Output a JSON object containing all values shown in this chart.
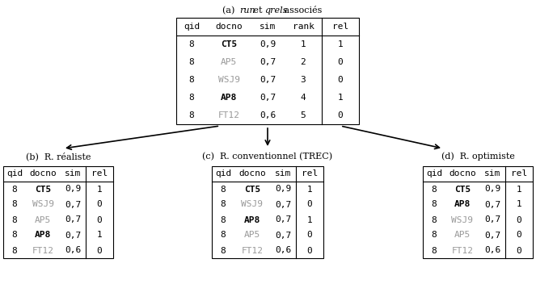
{
  "title_a_parts": [
    "(a)  ",
    "run",
    " et ",
    "qrels",
    " associés"
  ],
  "title_a_italic": [
    false,
    true,
    false,
    true,
    false
  ],
  "title_b": "(b)  R. réaliste",
  "title_c": "(c)  R. conventionnel (TREC)",
  "title_d": "(d)  R. optimiste",
  "table_a_headers": [
    "qid",
    "docno",
    "sim",
    "rank",
    "rel"
  ],
  "table_a_rows": [
    {
      "qid": "8",
      "docno": "CT5",
      "sim": "0,9",
      "rank": "1",
      "rel": "1",
      "docno_bold": true,
      "docno_gray": false
    },
    {
      "qid": "8",
      "docno": "AP5",
      "sim": "0,7",
      "rank": "2",
      "rel": "0",
      "docno_bold": false,
      "docno_gray": true
    },
    {
      "qid": "8",
      "docno": "WSJ9",
      "sim": "0,7",
      "rank": "3",
      "rel": "0",
      "docno_bold": false,
      "docno_gray": true
    },
    {
      "qid": "8",
      "docno": "AP8",
      "sim": "0,7",
      "rank": "4",
      "rel": "1",
      "docno_bold": true,
      "docno_gray": false
    },
    {
      "qid": "8",
      "docno": "FT12",
      "sim": "0,6",
      "rank": "5",
      "rel": "0",
      "docno_bold": false,
      "docno_gray": true
    }
  ],
  "table_b_headers": [
    "qid",
    "docno",
    "sim",
    "rel"
  ],
  "table_b_rows": [
    {
      "qid": "8",
      "docno": "CT5",
      "sim": "0,9",
      "rel": "1",
      "docno_bold": true,
      "docno_gray": false
    },
    {
      "qid": "8",
      "docno": "WSJ9",
      "sim": "0,7",
      "rel": "0",
      "docno_bold": false,
      "docno_gray": true
    },
    {
      "qid": "8",
      "docno": "AP5",
      "sim": "0,7",
      "rel": "0",
      "docno_bold": false,
      "docno_gray": true
    },
    {
      "qid": "8",
      "docno": "AP8",
      "sim": "0,7",
      "rel": "1",
      "docno_bold": true,
      "docno_gray": false
    },
    {
      "qid": "8",
      "docno": "FT12",
      "sim": "0,6",
      "rel": "0",
      "docno_bold": false,
      "docno_gray": true
    }
  ],
  "table_c_headers": [
    "qid",
    "docno",
    "sim",
    "rel"
  ],
  "table_c_rows": [
    {
      "qid": "8",
      "docno": "CT5",
      "sim": "0,9",
      "rel": "1",
      "docno_bold": true,
      "docno_gray": false
    },
    {
      "qid": "8",
      "docno": "WSJ9",
      "sim": "0,7",
      "rel": "0",
      "docno_bold": false,
      "docno_gray": true
    },
    {
      "qid": "8",
      "docno": "AP8",
      "sim": "0,7",
      "rel": "1",
      "docno_bold": true,
      "docno_gray": false
    },
    {
      "qid": "8",
      "docno": "AP5",
      "sim": "0,7",
      "rel": "0",
      "docno_bold": false,
      "docno_gray": true
    },
    {
      "qid": "8",
      "docno": "FT12",
      "sim": "0,6",
      "rel": "0",
      "docno_bold": false,
      "docno_gray": true
    }
  ],
  "table_d_headers": [
    "qid",
    "docno",
    "sim",
    "rel"
  ],
  "table_d_rows": [
    {
      "qid": "8",
      "docno": "CT5",
      "sim": "0,9",
      "rel": "1",
      "docno_bold": true,
      "docno_gray": false
    },
    {
      "qid": "8",
      "docno": "AP8",
      "sim": "0,7",
      "rel": "1",
      "docno_bold": true,
      "docno_gray": false
    },
    {
      "qid": "8",
      "docno": "WSJ9",
      "sim": "0,7",
      "rel": "0",
      "docno_bold": false,
      "docno_gray": true
    },
    {
      "qid": "8",
      "docno": "AP5",
      "sim": "0,7",
      "rel": "0",
      "docno_bold": false,
      "docno_gray": true
    },
    {
      "qid": "8",
      "docno": "FT12",
      "sim": "0,6",
      "rel": "0",
      "docno_bold": false,
      "docno_gray": true
    }
  ],
  "bg_color": "#ffffff",
  "text_color": "#000000",
  "gray_color": "#999999",
  "font_size": 8.0
}
